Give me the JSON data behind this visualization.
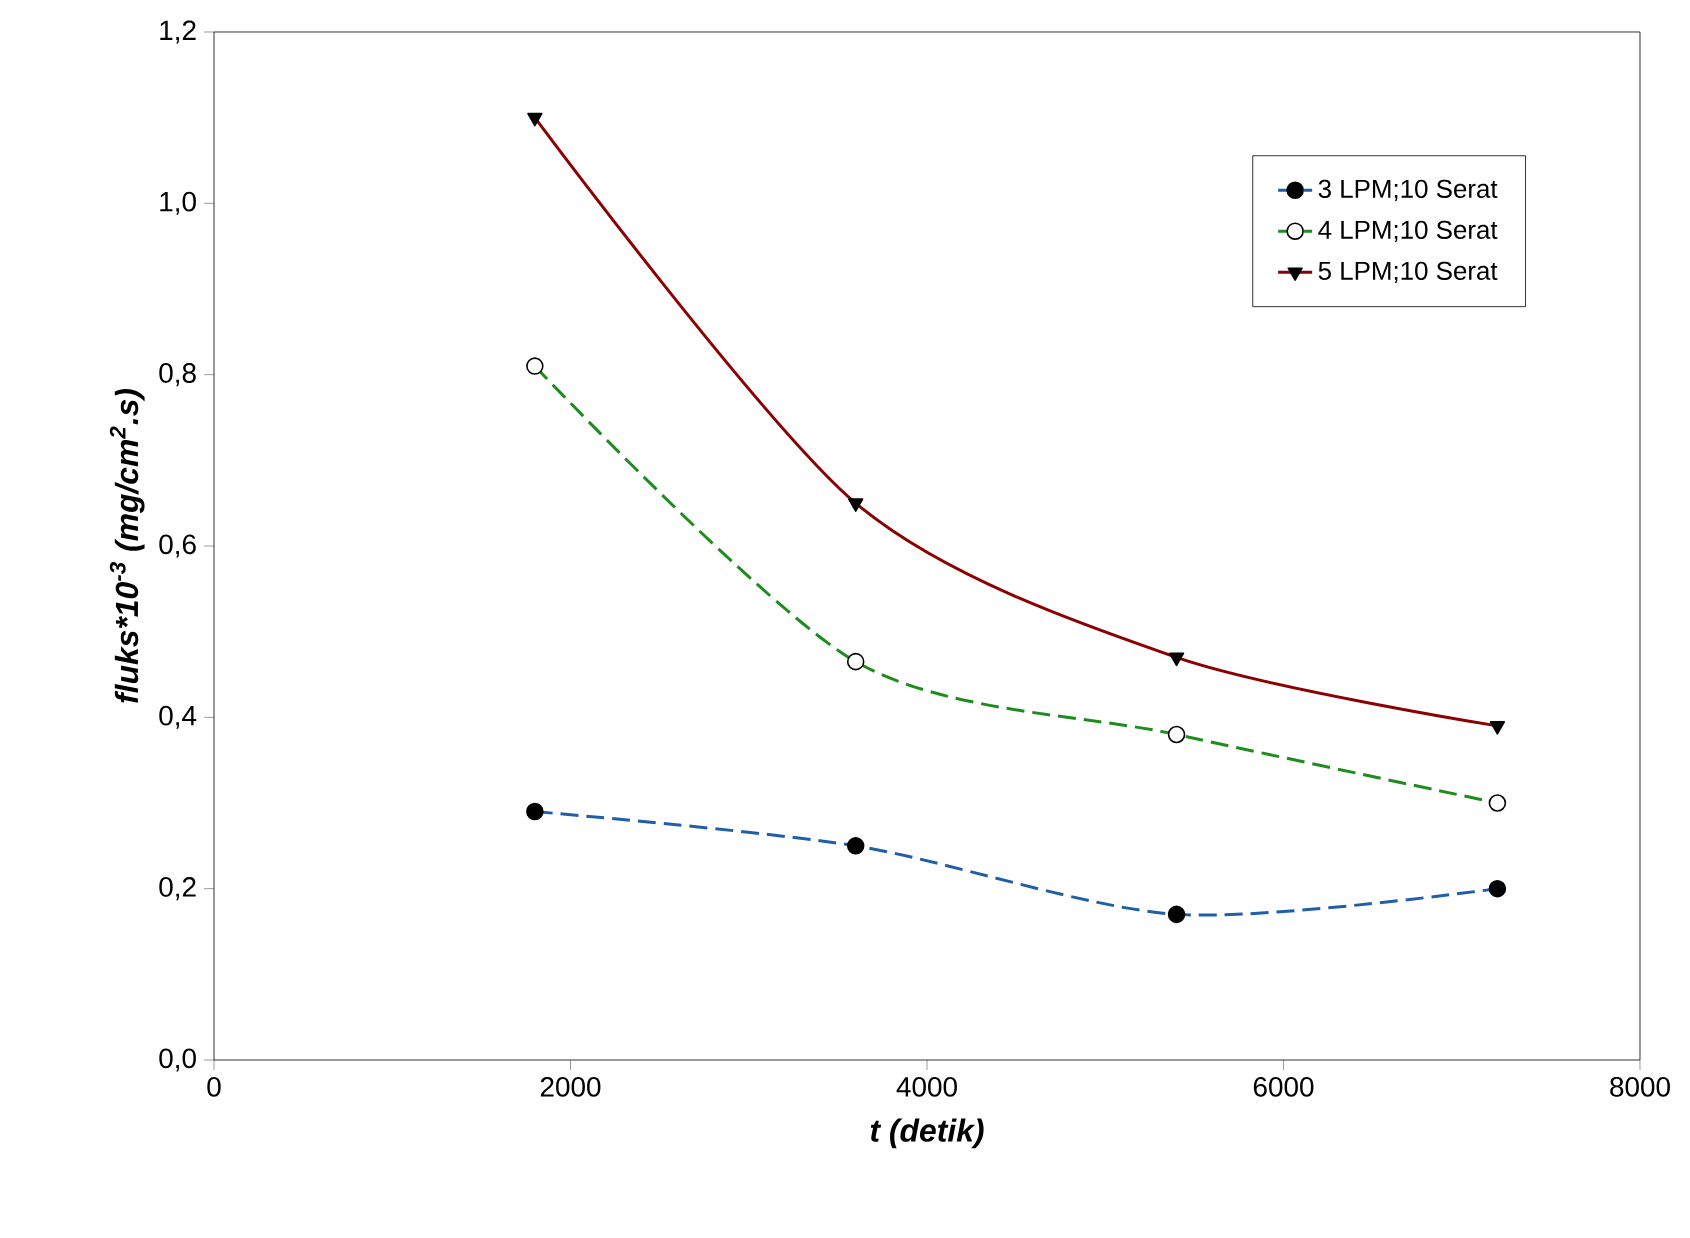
{
  "chart_data": {
    "type": "line",
    "xlabel": "t (detik)",
    "ylabel": "fluks*10$^{-3}$ (mg/cm$^{2}$.s)",
    "x": [
      1800,
      3600,
      5400,
      7200
    ],
    "series": [
      {
        "name": "3 LPM;10 Serat",
        "color": "#1f5fa8",
        "marker": "circle",
        "line_style": "dashed",
        "values": [
          0.29,
          0.25,
          0.17,
          0.2
        ]
      },
      {
        "name": "4 LPM;10 Serat",
        "color": "#1e8c1e",
        "marker": "circle",
        "line_style": "dashed",
        "values": [
          0.81,
          0.465,
          0.38,
          0.3
        ]
      },
      {
        "name": "5 LPM;10 Serat",
        "color": "#8b0000",
        "marker": "triangle",
        "line_style": "solid",
        "values": [
          1.1,
          0.65,
          0.47,
          0.39
        ]
      }
    ],
    "xlim": [
      0,
      8000
    ],
    "xticks": [
      0,
      2000,
      4000,
      6000,
      8000
    ],
    "ylim": [
      0,
      1.2
    ],
    "yticks": [
      {
        "value": 0,
        "label": "0,0"
      },
      {
        "value": 0.2,
        "label": "0,2"
      },
      {
        "value": 0.4,
        "label": "0,4"
      },
      {
        "value": 0.6,
        "label": "0,6"
      },
      {
        "value": 0.8,
        "label": "0,8"
      },
      {
        "value": 1.0,
        "label": "1,0"
      },
      {
        "value": 1.2,
        "label": "1,2"
      }
    ],
    "grid": false,
    "legend": "top right"
  }
}
